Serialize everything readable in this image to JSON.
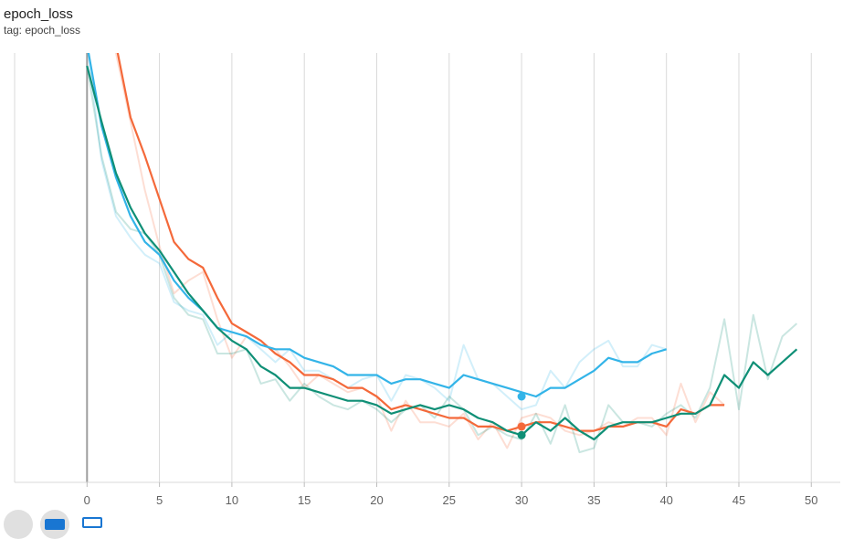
{
  "card": {
    "title": "epoch_loss",
    "tag": "tag: epoch_loss"
  },
  "controls": {
    "icons": [
      "fullscreen-icon",
      "log-scale-icon",
      "fit-domain-icon"
    ]
  },
  "colors": {
    "orange": "#f4693a",
    "blue": "#33b4e8",
    "teal": "#0f8f76",
    "grid": "#d9d9d9",
    "zero_line": "#9e9e9e"
  },
  "chart_data": {
    "type": "line",
    "title": "",
    "xlabel": "",
    "ylabel": "",
    "xlim": [
      -5,
      52
    ],
    "ylim": [
      0,
      1
    ],
    "x_ticks": [
      0,
      5,
      10,
      15,
      20,
      25,
      30,
      35,
      40,
      45,
      50
    ],
    "x_tick_labels": [
      "0",
      "5",
      "10",
      "15",
      "20",
      "25",
      "30",
      "35",
      "40",
      "45",
      "50"
    ],
    "y_ticks_visible": false,
    "grid": "vertical",
    "legend": "none",
    "hover_x": 30,
    "series": [
      {
        "color": "#f4693a",
        "smoothed": [
          1.05,
          1.2,
          1.02,
          0.85,
          0.76,
          0.66,
          0.56,
          0.52,
          0.5,
          0.43,
          0.37,
          0.35,
          0.33,
          0.3,
          0.28,
          0.25,
          0.25,
          0.24,
          0.22,
          0.22,
          0.2,
          0.17,
          0.18,
          0.17,
          0.16,
          0.15,
          0.15,
          0.13,
          0.13,
          0.12,
          0.13,
          0.14,
          0.14,
          0.13,
          0.12,
          0.12,
          0.13,
          0.13,
          0.14,
          0.14,
          0.13,
          0.17,
          0.16,
          0.18,
          0.18
        ],
        "raw": [
          1.05,
          1.2,
          1.0,
          0.84,
          0.68,
          0.55,
          0.44,
          0.47,
          0.49,
          0.38,
          0.29,
          0.34,
          0.32,
          0.31,
          0.27,
          0.22,
          0.25,
          0.23,
          0.21,
          0.22,
          0.2,
          0.12,
          0.19,
          0.14,
          0.14,
          0.13,
          0.16,
          0.1,
          0.14,
          0.08,
          0.15,
          0.16,
          0.15,
          0.12,
          0.11,
          0.12,
          0.14,
          0.13,
          0.15,
          0.15,
          0.11,
          0.23,
          0.14,
          0.21,
          0.18
        ],
        "hover_value": 0.13
      },
      {
        "color": "#33b4e8",
        "smoothed": [
          1.02,
          0.83,
          0.71,
          0.62,
          0.56,
          0.53,
          0.47,
          0.43,
          0.4,
          0.36,
          0.35,
          0.34,
          0.32,
          0.31,
          0.31,
          0.29,
          0.28,
          0.27,
          0.25,
          0.25,
          0.25,
          0.23,
          0.24,
          0.24,
          0.23,
          0.22,
          0.25,
          0.24,
          0.23,
          0.22,
          0.21,
          0.2,
          0.22,
          0.22,
          0.24,
          0.26,
          0.29,
          0.28,
          0.28,
          0.3,
          0.31
        ],
        "raw": [
          1.02,
          0.75,
          0.62,
          0.57,
          0.53,
          0.51,
          0.42,
          0.4,
          0.39,
          0.32,
          0.35,
          0.34,
          0.31,
          0.28,
          0.31,
          0.26,
          0.26,
          0.24,
          0.22,
          0.24,
          0.25,
          0.19,
          0.25,
          0.24,
          0.22,
          0.19,
          0.32,
          0.24,
          0.23,
          0.2,
          0.17,
          0.18,
          0.26,
          0.22,
          0.28,
          0.31,
          0.33,
          0.27,
          0.27,
          0.32,
          0.31
        ],
        "hover_value": 0.2
      },
      {
        "color": "#0f8f76",
        "smoothed": [
          0.97,
          0.84,
          0.72,
          0.64,
          0.58,
          0.54,
          0.49,
          0.44,
          0.4,
          0.36,
          0.33,
          0.31,
          0.27,
          0.25,
          0.22,
          0.22,
          0.21,
          0.2,
          0.19,
          0.19,
          0.18,
          0.16,
          0.17,
          0.18,
          0.17,
          0.18,
          0.17,
          0.15,
          0.14,
          0.12,
          0.11,
          0.14,
          0.12,
          0.15,
          0.12,
          0.1,
          0.13,
          0.14,
          0.14,
          0.14,
          0.15,
          0.16,
          0.16,
          0.18,
          0.25,
          0.22,
          0.28,
          0.25,
          0.28,
          0.31
        ],
        "raw": [
          0.97,
          0.76,
          0.63,
          0.59,
          0.58,
          0.53,
          0.43,
          0.39,
          0.38,
          0.3,
          0.3,
          0.31,
          0.23,
          0.24,
          0.19,
          0.23,
          0.2,
          0.18,
          0.17,
          0.19,
          0.17,
          0.14,
          0.17,
          0.18,
          0.15,
          0.2,
          0.17,
          0.11,
          0.13,
          0.11,
          0.1,
          0.16,
          0.09,
          0.18,
          0.07,
          0.08,
          0.18,
          0.14,
          0.14,
          0.13,
          0.16,
          0.18,
          0.15,
          0.22,
          0.38,
          0.17,
          0.39,
          0.24,
          0.34,
          0.37
        ],
        "hover_value": 0.11
      }
    ]
  }
}
